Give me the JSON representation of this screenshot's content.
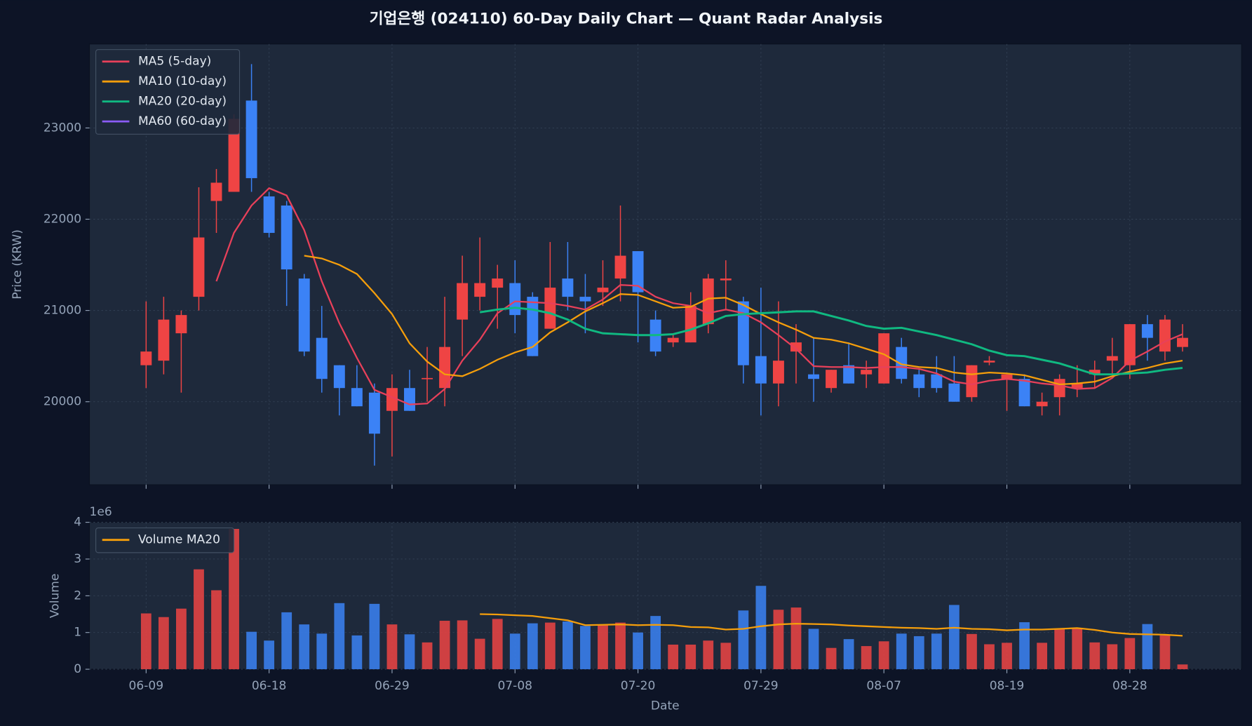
{
  "chart_data": [
    {
      "type": "candlestick",
      "title": "기업은행 (024110) 60-Day Daily Chart — Quant Radar Analysis",
      "ylabel": "Price (KRW)",
      "up_color": "#ef4444",
      "down_color": "#3b82f6",
      "open": [
        20400,
        20450,
        20750,
        21150,
        22200,
        22300,
        23300,
        22250,
        22150,
        21350,
        20700,
        20400,
        20150,
        20100,
        19900,
        20150,
        20250,
        20150,
        20900,
        21150,
        21250,
        21300,
        21150,
        20800,
        21350,
        21150,
        21200,
        21350,
        21650,
        20900,
        20650,
        20650,
        20850,
        21330,
        21100,
        20500,
        20200,
        20550,
        20300,
        20150,
        20400,
        20300,
        20200,
        20600,
        20300,
        20300,
        20200,
        20050,
        20430,
        20250,
        20250,
        19950,
        20050,
        20150,
        20300,
        20450,
        20400,
        20850,
        20550,
        20600
      ],
      "high": [
        21100,
        21150,
        21000,
        22350,
        22550,
        23150,
        23700,
        22300,
        22200,
        21400,
        21050,
        20400,
        20400,
        20200,
        20300,
        20350,
        20600,
        21150,
        21600,
        21800,
        21500,
        21550,
        21200,
        21750,
        21750,
        21400,
        21550,
        22150,
        21650,
        21000,
        20750,
        21200,
        21400,
        21550,
        21150,
        21250,
        21100,
        20850,
        20700,
        20350,
        20650,
        20450,
        20750,
        20700,
        20350,
        20500,
        20500,
        20400,
        20500,
        20300,
        20300,
        20100,
        20300,
        20400,
        20450,
        20700,
        20850,
        20950,
        20950,
        20850
      ],
      "low": [
        20150,
        20300,
        20100,
        21000,
        21850,
        22300,
        22300,
        21800,
        21050,
        20500,
        20100,
        19850,
        19950,
        19300,
        19400,
        19900,
        20000,
        19950,
        20500,
        21000,
        20800,
        20750,
        20500,
        20800,
        21000,
        20750,
        21050,
        21100,
        20650,
        20500,
        20600,
        20650,
        20750,
        21000,
        20200,
        19850,
        19950,
        20200,
        20000,
        20100,
        20200,
        20150,
        20200,
        20200,
        20050,
        20100,
        20000,
        20000,
        20400,
        19900,
        19950,
        19850,
        19850,
        20050,
        20150,
        20300,
        20250,
        20450,
        20450,
        20550
      ],
      "close": [
        20550,
        20900,
        20950,
        21800,
        22400,
        23100,
        22450,
        21850,
        21450,
        20550,
        20250,
        20150,
        19950,
        19650,
        20150,
        19900,
        20260,
        20600,
        21300,
        21300,
        21350,
        20950,
        20500,
        21250,
        21150,
        21100,
        21250,
        21600,
        21200,
        20550,
        20700,
        21050,
        21350,
        21350,
        20400,
        20200,
        20450,
        20650,
        20250,
        20350,
        20200,
        20350,
        20750,
        20250,
        20150,
        20150,
        20000,
        20400,
        20450,
        20300,
        19950,
        20000,
        20250,
        20200,
        20350,
        20500,
        20850,
        20700,
        20900,
        20700
      ],
      "series": [
        {
          "name": "MA5 (5-day)",
          "color": "#e8405a",
          "values": [
            null,
            null,
            null,
            null,
            21320,
            21850,
            22150,
            22340,
            22260,
            21880,
            21320,
            20860,
            20480,
            20130,
            20050,
            19970,
            19980,
            20140,
            20450,
            20680,
            20970,
            21100,
            21090,
            21080,
            21050,
            21010,
            21120,
            21280,
            21270,
            21150,
            21080,
            21050,
            20970,
            21010,
            20970,
            20870,
            20730,
            20580,
            20390,
            20380,
            20380,
            20370,
            20380,
            20380,
            20360,
            20310,
            20220,
            20190,
            20230,
            20250,
            20230,
            20200,
            20180,
            20140,
            20150,
            20260,
            20450,
            20550,
            20660,
            20740
          ]
        },
        {
          "name": "MA10 (10-day)",
          "color": "#f59e0b",
          "values": [
            null,
            null,
            null,
            null,
            null,
            null,
            null,
            null,
            null,
            21600,
            21570,
            21500,
            21400,
            21190,
            20960,
            20640,
            20440,
            20300,
            20280,
            20360,
            20460,
            20540,
            20600,
            20760,
            20870,
            20990,
            21080,
            21180,
            21170,
            21100,
            21030,
            21040,
            21130,
            21140,
            21060,
            20960,
            20870,
            20790,
            20700,
            20680,
            20640,
            20580,
            20520,
            20410,
            20380,
            20370,
            20320,
            20300,
            20320,
            20310,
            20290,
            20240,
            20190,
            20200,
            20220,
            20280,
            20330,
            20370,
            20420,
            20450
          ]
        },
        {
          "name": "MA20 (20-day)",
          "color": "#10b981",
          "values": [
            null,
            null,
            null,
            null,
            null,
            null,
            null,
            null,
            null,
            null,
            null,
            null,
            null,
            null,
            null,
            null,
            null,
            null,
            null,
            20980,
            21010,
            21030,
            21010,
            20970,
            20900,
            20800,
            20750,
            20740,
            20730,
            20730,
            20740,
            20790,
            20860,
            20940,
            20960,
            20970,
            20980,
            20990,
            20990,
            20940,
            20890,
            20830,
            20800,
            20810,
            20770,
            20730,
            20680,
            20630,
            20560,
            20510,
            20500,
            20460,
            20420,
            20360,
            20300,
            20300,
            20310,
            20320,
            20350,
            20370
          ]
        },
        {
          "name": "MA60 (60-day)",
          "color": "#8b5cf6",
          "values": [
            null,
            null,
            null,
            null,
            null,
            null,
            null,
            null,
            null,
            null,
            null,
            null,
            null,
            null,
            null,
            null,
            null,
            null,
            null,
            null,
            null,
            null,
            null,
            null,
            null,
            null,
            null,
            null,
            null,
            null,
            null,
            null,
            null,
            null,
            null,
            null,
            null,
            null,
            null,
            null,
            null,
            null,
            null,
            null,
            null,
            null,
            null,
            null,
            null,
            null,
            null,
            null,
            null,
            null,
            null,
            null,
            null,
            null,
            null,
            null
          ]
        }
      ],
      "ylim": [
        19090,
        23920
      ],
      "yticks": [
        20000,
        21000,
        22000,
        23000
      ],
      "grid": true,
      "legend": "upper left"
    },
    {
      "type": "bar",
      "xlabel": "Date",
      "ylabel": "Volume",
      "offset_label": "1e6",
      "categories": [
        "06-09",
        null,
        null,
        null,
        null,
        null,
        null,
        "06-18",
        null,
        null,
        null,
        null,
        null,
        null,
        "06-29",
        null,
        null,
        null,
        null,
        null,
        null,
        "07-08",
        null,
        null,
        null,
        null,
        null,
        null,
        "07-20",
        null,
        null,
        null,
        null,
        null,
        null,
        "07-29",
        null,
        null,
        null,
        null,
        null,
        null,
        "08-07",
        null,
        null,
        null,
        null,
        null,
        null,
        "08-19",
        null,
        null,
        null,
        null,
        null,
        null,
        "08-28",
        null,
        null,
        null
      ],
      "values": [
        1520000,
        1420000,
        1650000,
        2720000,
        2150000,
        3820000,
        1020000,
        780000,
        1550000,
        1220000,
        970000,
        1800000,
        920000,
        1780000,
        1220000,
        950000,
        730000,
        1320000,
        1330000,
        830000,
        1370000,
        970000,
        1250000,
        1270000,
        1300000,
        1180000,
        1200000,
        1270000,
        1000000,
        1450000,
        670000,
        670000,
        780000,
        720000,
        1600000,
        2270000,
        1620000,
        1680000,
        1100000,
        580000,
        820000,
        630000,
        760000,
        970000,
        900000,
        970000,
        1750000,
        960000,
        680000,
        720000,
        1280000,
        720000,
        1100000,
        1100000,
        730000,
        680000,
        850000,
        1230000,
        920000,
        130000
      ],
      "series": [
        {
          "name": "Volume MA20",
          "color": "#f59e0b",
          "values": [
            null,
            null,
            null,
            null,
            null,
            null,
            null,
            null,
            null,
            null,
            null,
            null,
            null,
            null,
            null,
            null,
            null,
            null,
            null,
            1500000,
            1490000,
            1470000,
            1450000,
            1390000,
            1330000,
            1200000,
            1210000,
            1220000,
            1200000,
            1210000,
            1200000,
            1150000,
            1140000,
            1080000,
            1100000,
            1170000,
            1220000,
            1240000,
            1230000,
            1220000,
            1190000,
            1170000,
            1150000,
            1130000,
            1120000,
            1100000,
            1130000,
            1100000,
            1090000,
            1060000,
            1080000,
            1080000,
            1100000,
            1120000,
            1070000,
            1000000,
            960000,
            950000,
            940000,
            910000
          ]
        }
      ],
      "ylim": [
        0,
        4000000
      ],
      "yticks": [
        0,
        {
          "value": 1000000,
          "label": "1"
        },
        {
          "value": 2000000,
          "label": "2"
        },
        {
          "value": 3000000,
          "label": "3"
        },
        {
          "value": 4000000,
          "label": "4"
        }
      ],
      "grid": true,
      "legend": "upper left"
    }
  ]
}
